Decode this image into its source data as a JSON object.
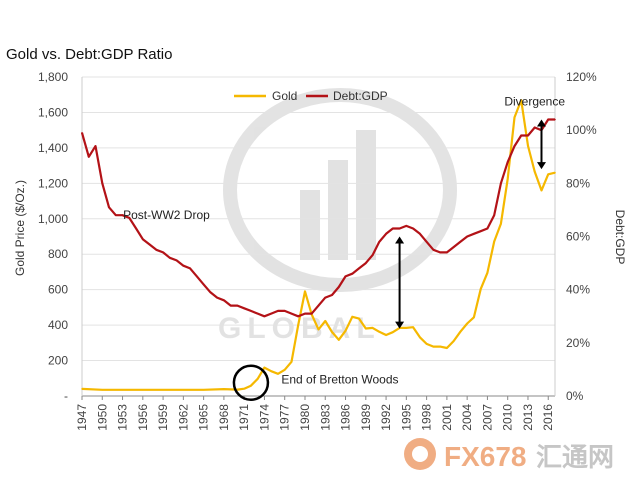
{
  "chart_data": {
    "type": "line",
    "title": "Gold vs. Debt:GDP Ratio",
    "ylabel": "Gold Price ($/Oz.)",
    "y2label": "Debt:GDP",
    "ylim": [
      0,
      1800
    ],
    "y2lim": [
      0,
      120
    ],
    "y_ticks": [
      "1,800",
      "1,600",
      "1,400",
      "1,200",
      "1,000",
      "800",
      "600",
      "400",
      "200",
      "-"
    ],
    "y_tick_values": [
      1800,
      1600,
      1400,
      1200,
      1000,
      800,
      600,
      400,
      200,
      0
    ],
    "y2_ticks": [
      "120%",
      "100%",
      "80%",
      "60%",
      "40%",
      "20%",
      "0%"
    ],
    "y2_tick_values": [
      120,
      100,
      80,
      60,
      40,
      20,
      0
    ],
    "xlim": [
      1947,
      2017
    ],
    "x_ticks": [
      "1947",
      "1950",
      "1953",
      "1956",
      "1959",
      "1962",
      "1965",
      "1968",
      "1971",
      "1974",
      "1977",
      "1980",
      "1983",
      "1986",
      "1989",
      "1992",
      "1995",
      "1998",
      "2001",
      "2004",
      "2007",
      "2010",
      "2013",
      "2016"
    ],
    "grid": "horizontal",
    "legend": "top-center",
    "series": [
      {
        "name": "Gold",
        "axis": "left",
        "color": "#f5b800",
        "points": [
          [
            1947,
            40
          ],
          [
            1950,
            35
          ],
          [
            1953,
            35
          ],
          [
            1956,
            35
          ],
          [
            1959,
            35
          ],
          [
            1962,
            35
          ],
          [
            1965,
            35
          ],
          [
            1968,
            39
          ],
          [
            1970,
            36
          ],
          [
            1971,
            41
          ],
          [
            1972,
            58
          ],
          [
            1973,
            97
          ],
          [
            1974,
            160
          ],
          [
            1975,
            140
          ],
          [
            1976,
            125
          ],
          [
            1977,
            148
          ],
          [
            1978,
            193
          ],
          [
            1979,
            400
          ],
          [
            1980,
            590
          ],
          [
            1981,
            460
          ],
          [
            1982,
            376
          ],
          [
            1983,
            423
          ],
          [
            1984,
            361
          ],
          [
            1985,
            317
          ],
          [
            1986,
            368
          ],
          [
            1987,
            447
          ],
          [
            1988,
            437
          ],
          [
            1989,
            381
          ],
          [
            1990,
            384
          ],
          [
            1991,
            362
          ],
          [
            1992,
            344
          ],
          [
            1993,
            360
          ],
          [
            1994,
            384
          ],
          [
            1995,
            384
          ],
          [
            1996,
            388
          ],
          [
            1997,
            331
          ],
          [
            1998,
            294
          ],
          [
            1999,
            279
          ],
          [
            2000,
            279
          ],
          [
            2001,
            271
          ],
          [
            2002,
            310
          ],
          [
            2003,
            363
          ],
          [
            2004,
            409
          ],
          [
            2005,
            444
          ],
          [
            2006,
            603
          ],
          [
            2007,
            695
          ],
          [
            2008,
            872
          ],
          [
            2009,
            972
          ],
          [
            2010,
            1225
          ],
          [
            2011,
            1572
          ],
          [
            2012,
            1669
          ],
          [
            2013,
            1411
          ],
          [
            2014,
            1266
          ],
          [
            2015,
            1160
          ],
          [
            2016,
            1251
          ],
          [
            2017,
            1260
          ]
        ]
      },
      {
        "name": "Debt:GDP",
        "axis": "right",
        "color": "#b31217",
        "points": [
          [
            1947,
            99
          ],
          [
            1948,
            90
          ],
          [
            1949,
            94
          ],
          [
            1950,
            80
          ],
          [
            1951,
            71
          ],
          [
            1952,
            68
          ],
          [
            1953,
            68
          ],
          [
            1954,
            67
          ],
          [
            1955,
            63
          ],
          [
            1956,
            59
          ],
          [
            1957,
            57
          ],
          [
            1958,
            55
          ],
          [
            1959,
            54
          ],
          [
            1960,
            52
          ],
          [
            1961,
            51
          ],
          [
            1962,
            49
          ],
          [
            1963,
            48
          ],
          [
            1964,
            45
          ],
          [
            1965,
            42
          ],
          [
            1966,
            39
          ],
          [
            1967,
            37
          ],
          [
            1968,
            36
          ],
          [
            1969,
            34
          ],
          [
            1970,
            34
          ],
          [
            1971,
            33
          ],
          [
            1972,
            32
          ],
          [
            1973,
            31
          ],
          [
            1974,
            30
          ],
          [
            1975,
            31
          ],
          [
            1976,
            32
          ],
          [
            1977,
            32
          ],
          [
            1978,
            31
          ],
          [
            1979,
            30
          ],
          [
            1980,
            31
          ],
          [
            1981,
            31
          ],
          [
            1982,
            34
          ],
          [
            1983,
            37
          ],
          [
            1984,
            38
          ],
          [
            1985,
            41
          ],
          [
            1986,
            45
          ],
          [
            1987,
            46
          ],
          [
            1988,
            48
          ],
          [
            1989,
            50
          ],
          [
            1990,
            53
          ],
          [
            1991,
            58
          ],
          [
            1992,
            61
          ],
          [
            1993,
            63
          ],
          [
            1994,
            63
          ],
          [
            1995,
            64
          ],
          [
            1996,
            63
          ],
          [
            1997,
            61
          ],
          [
            1998,
            58
          ],
          [
            1999,
            55
          ],
          [
            2000,
            54
          ],
          [
            2001,
            54
          ],
          [
            2002,
            56
          ],
          [
            2003,
            58
          ],
          [
            2004,
            60
          ],
          [
            2005,
            61
          ],
          [
            2006,
            62
          ],
          [
            2007,
            63
          ],
          [
            2008,
            68
          ],
          [
            2009,
            80
          ],
          [
            2010,
            88
          ],
          [
            2011,
            94
          ],
          [
            2012,
            98
          ],
          [
            2013,
            98
          ],
          [
            2014,
            101
          ],
          [
            2015,
            100
          ],
          [
            2016,
            104
          ],
          [
            2017,
            104
          ]
        ]
      }
    ],
    "annotations": [
      {
        "text": "Post-WW2 Drop",
        "x": 1959.5,
        "y": 1000
      },
      {
        "text": "End of Bretton Woods",
        "x": 1976.5,
        "y": 70
      },
      {
        "text": "Divergence",
        "x": 2009.5,
        "y": 1640
      }
    ],
    "markers": {
      "circle": {
        "x": 1972,
        "y": 75
      },
      "arrow_1994": {
        "x": 1994,
        "y_from": 900,
        "y_to": 380
      },
      "arrow_2015": {
        "x": 2015,
        "y_from": 1560,
        "y_to": 1280
      }
    }
  },
  "watermarks": {
    "logo_text": "GLOBAL",
    "brand_text": "FX678",
    "brand_cn": "汇通网"
  }
}
